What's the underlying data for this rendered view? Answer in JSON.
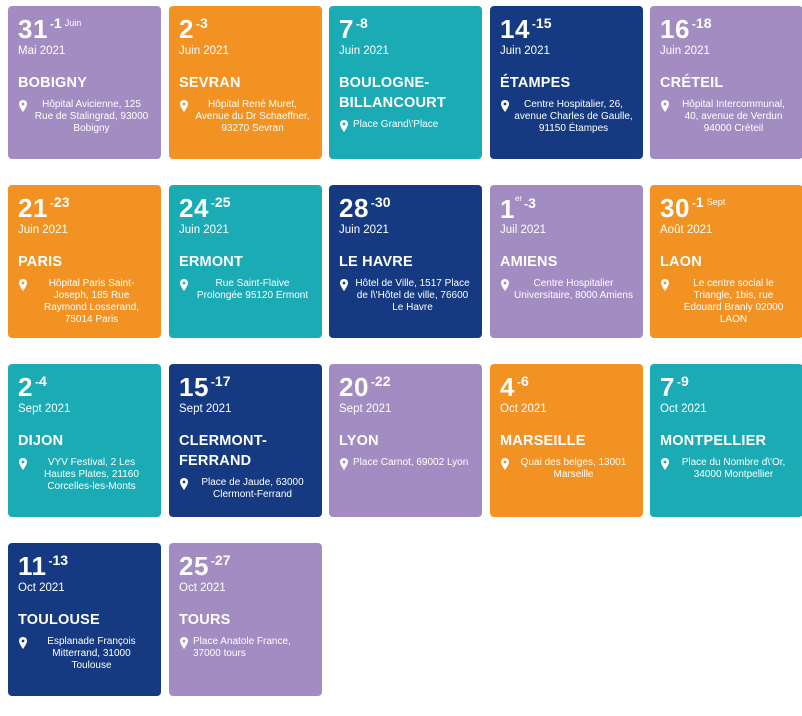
{
  "events": [
    {
      "start": "31",
      "end": "1",
      "end_month": "Juin",
      "month": "Mai 2021",
      "city": "BOBIGNY",
      "address": "Hôpital Avicienne, 125 Rue de Stalingrad, 93000 Bobigny",
      "color": "#a28cc1"
    },
    {
      "start": "2",
      "end": "3",
      "month": "Juin 2021",
      "city": "SEVRAN",
      "address": "Hôpital René Muret, Avenue du Dr Schaeffner, 93270 Sevran",
      "color": "#f29222"
    },
    {
      "start": "7",
      "end": "8",
      "month": "Juin 2021",
      "city": "BOULOGNE-BILLANCOURT",
      "address": "Place Grand\\'Place",
      "color": "#1aabb5"
    },
    {
      "start": "14",
      "end": "15",
      "month": "Juin 2021",
      "city": "ÉTAMPES",
      "address": "Centre Hospitalier, 26, avenue Charles de Gaulle, 91150 Étampes",
      "color": "#153a82"
    },
    {
      "start": "16",
      "end": "18",
      "month": "Juin 2021",
      "city": "CRÉTEIL",
      "address": "Hôpital Intercommunal, 40, avenue de Verdun 94000 Créteil",
      "color": "#a28cc1"
    },
    {
      "start": "21",
      "end": "23",
      "month": "Juin 2021",
      "city": "PARIS",
      "address": "Hôpital Paris Saint-Joseph, 185 Rue Raymond Losserand, 75014 Paris",
      "color": "#f29222"
    },
    {
      "start": "24",
      "end": "25",
      "month": "Juin 2021",
      "city": "ERMONT",
      "address": "Rue Saint-Flaive Prolongée 95120 Ermont",
      "color": "#1aabb5"
    },
    {
      "start": "28",
      "end": "30",
      "month": "Juin 2021",
      "city": "LE HAVRE",
      "address": "Hôtel de Ville, 1517 Place de l\\'Hôtel de ville, 76600 Le Havre",
      "color": "#153a82"
    },
    {
      "start": "1",
      "start_sup": "er",
      "end": "3",
      "month": "Juil 2021",
      "city": "AMIENS",
      "address": "Centre Hospitalier Universitaire, 8000 Amiens",
      "color": "#a28cc1"
    },
    {
      "start": "30",
      "end": "1",
      "end_month": "Sept",
      "month": "Août 2021",
      "city": "LAON",
      "address": "Le centre social le Triangle, 1bis, rue Edouard Branly 02000 LAON",
      "color": "#f29222"
    },
    {
      "start": "2",
      "end": "4",
      "month": "Sept 2021",
      "city": "DIJON",
      "address": "VYV Festival, 2 Les Hautes Plates, 21160 Corcelles-les-Monts",
      "color": "#1aabb5"
    },
    {
      "start": "15",
      "end": "17",
      "month": "Sept 2021",
      "city": "CLERMONT-FERRAND",
      "address": "Place de Jaude, 63000 Clermont-Ferrand",
      "color": "#153a82"
    },
    {
      "start": "20",
      "end": "22",
      "month": "Sept 2021",
      "city": "LYON",
      "address": "Place Carnot, 69002 Lyon",
      "color": "#a28cc1"
    },
    {
      "start": "4",
      "end": "6",
      "month": "Oct 2021",
      "city": "MARSEILLE",
      "address": "Quai des belges, 13001 Marseille",
      "color": "#f29222"
    },
    {
      "start": "7",
      "end": "9",
      "month": "Oct 2021",
      "city": "MONTPELLIER",
      "address": "Place du Nombre d\\'Or, 34000 Montpellier",
      "color": "#1aabb5"
    },
    {
      "start": "11",
      "end": "13",
      "month": "Oct 2021",
      "city": "TOULOUSE",
      "address": "Esplanade François Mitterrand, 31000 Toulouse",
      "color": "#153a82"
    },
    {
      "start": "25",
      "end": "27",
      "month": "Oct 2021",
      "city": "TOURS",
      "address": "Place Anatole France, 37000 tours",
      "color": "#a28cc1"
    }
  ],
  "separator": "-",
  "icons": {
    "pin": "map-pin-icon"
  }
}
